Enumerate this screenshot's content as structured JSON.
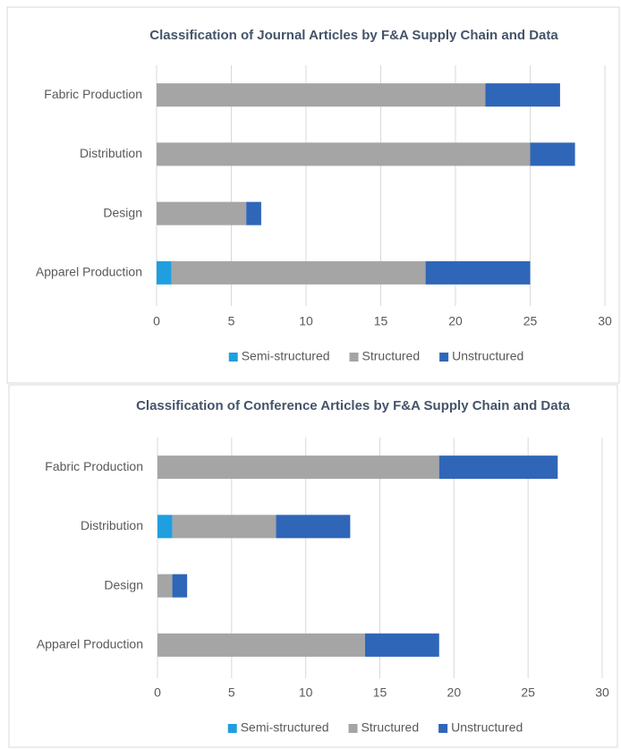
{
  "chart_data": [
    {
      "type": "bar",
      "orientation": "horizontal",
      "stacked": true,
      "grid": true,
      "legend": "bottom",
      "title": "Classification of Journal Articles by F&A Supply Chain and Data",
      "categories": [
        "Apparel Production",
        "Design",
        "Distribution",
        "Fabric Production"
      ],
      "series": [
        {
          "name": "Semi-structured",
          "color": "#1f9fe0",
          "values": [
            1,
            0,
            0,
            0
          ]
        },
        {
          "name": "Structured",
          "color": "#a5a5a5",
          "values": [
            17,
            6,
            25,
            22
          ]
        },
        {
          "name": "Unstructured",
          "color": "#2f66b8",
          "values": [
            7,
            1,
            3,
            5
          ]
        }
      ],
      "xlim": [
        0,
        30
      ],
      "xticks": [
        0,
        5,
        10,
        15,
        20,
        25,
        30
      ]
    },
    {
      "type": "bar",
      "orientation": "horizontal",
      "stacked": true,
      "grid": true,
      "legend": "bottom",
      "title": "Classification of Conference Articles by F&A Supply Chain and Data",
      "categories": [
        "Apparel Production",
        "Design",
        "Distribution",
        "Fabric Production"
      ],
      "series": [
        {
          "name": "Semi-structured",
          "color": "#1f9fe0",
          "values": [
            0,
            0,
            1,
            0
          ]
        },
        {
          "name": "Structured",
          "color": "#a5a5a5",
          "values": [
            14,
            1,
            7,
            19
          ]
        },
        {
          "name": "Unstructured",
          "color": "#2f66b8",
          "values": [
            5,
            1,
            5,
            8
          ]
        }
      ],
      "xlim": [
        0,
        30
      ],
      "xticks": [
        0,
        5,
        10,
        15,
        20,
        25,
        30
      ]
    }
  ]
}
